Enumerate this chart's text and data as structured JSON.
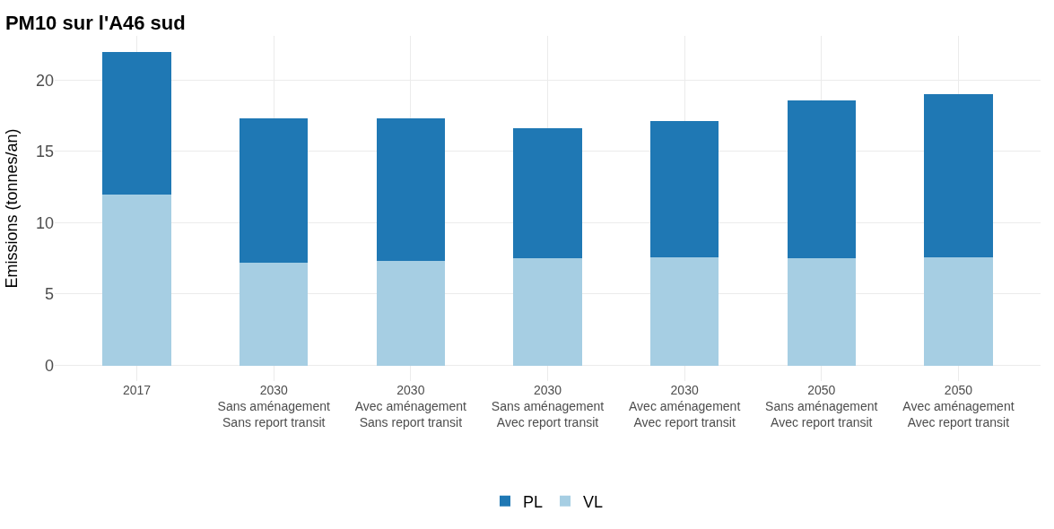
{
  "chart_data": {
    "type": "bar",
    "title": "PM10 sur l'A46 sud",
    "ylabel": "Emissions (tonnes/an)",
    "categories": [
      "2017",
      "2030\nSans aménagement\nSans report transit",
      "2030\nAvec aménagement\nSans report transit",
      "2030\nSans aménagement\nAvec report transit",
      "2030\nAvec aménagement\nAvec report transit",
      "2050\nSans aménagement\nAvec report transit",
      "2050\nAvec aménagement\nAvec report transit"
    ],
    "stacked": true,
    "series": [
      {
        "name": "VL",
        "color": "#a6cee3",
        "values": [
          12.0,
          7.2,
          7.3,
          7.5,
          7.6,
          7.5,
          7.6
        ]
      },
      {
        "name": "PL",
        "color": "#1f78b4",
        "values": [
          10.0,
          10.1,
          10.0,
          9.1,
          9.5,
          11.1,
          11.4
        ]
      }
    ],
    "ylim": [
      -1.1,
      23.1
    ],
    "yticks": [
      0,
      5,
      10,
      15,
      20
    ],
    "grid": true,
    "legend": "bottom"
  }
}
